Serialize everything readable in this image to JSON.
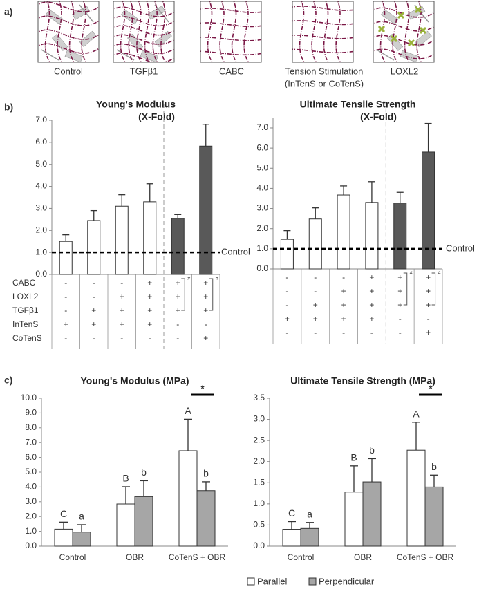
{
  "panel_labels": [
    "a)",
    "b)",
    "c)"
  ],
  "schematics": {
    "captions": [
      "Control",
      "TGFβ1",
      "CABC",
      "Tension Stimulation",
      "LOXL2"
    ],
    "subcaption": "(InTenS or CoTenS)"
  },
  "treatments": {
    "rows": [
      {
        "label": "CABC",
        "values": [
          "-",
          "-",
          "-",
          "+",
          "+",
          "+"
        ]
      },
      {
        "label": "LOXL2",
        "values": [
          "-",
          "-",
          "+",
          "+",
          "+",
          "+"
        ]
      },
      {
        "label": "TGFβ1",
        "values": [
          "-",
          "+",
          "+",
          "+",
          "+",
          "+"
        ]
      },
      {
        "label": "InTenS",
        "values": [
          "+",
          "+",
          "+",
          "+",
          "-",
          "-"
        ]
      },
      {
        "label": "CoTenS",
        "values": [
          "-",
          "-",
          "-",
          "-",
          "-",
          "+"
        ]
      }
    ],
    "bracket_mark": "#"
  },
  "chart_data": [
    {
      "type": "bar",
      "title": "Young's Modulus",
      "subtitle": "(X-Fold)",
      "values": [
        1.5,
        2.45,
        3.1,
        3.3,
        2.55,
        5.83
      ],
      "errors": [
        0.3,
        0.45,
        0.52,
        0.82,
        0.17,
        0.99
      ],
      "colors": [
        "#ffffff",
        "#ffffff",
        "#ffffff",
        "#ffffff",
        "#595959",
        "#595959"
      ],
      "ylim": [
        0,
        7
      ],
      "yticks": [
        {
          "value": 0,
          "label": "0.0"
        },
        {
          "value": 1,
          "label": "1.0"
        },
        {
          "value": 2,
          "label": "2.0"
        },
        {
          "value": 3,
          "label": "3.0"
        },
        {
          "value": 4,
          "label": "4.0"
        },
        {
          "value": 5,
          "label": "5.0"
        },
        {
          "value": 6,
          "label": "6.0"
        },
        {
          "value": 7,
          "label": "7.0"
        }
      ],
      "reference_line": {
        "value": 1,
        "label": "Control"
      }
    },
    {
      "type": "bar",
      "title": "Ultimate Tensile Strength",
      "subtitle": "(X-Fold)",
      "values": [
        1.47,
        2.48,
        3.67,
        3.3,
        3.27,
        5.8
      ],
      "errors": [
        0.43,
        0.55,
        0.45,
        1.03,
        0.53,
        1.42
      ],
      "colors": [
        "#ffffff",
        "#ffffff",
        "#ffffff",
        "#ffffff",
        "#595959",
        "#595959"
      ],
      "ylim": [
        0,
        7.5
      ],
      "yticks": [
        {
          "value": 0,
          "label": "0.0"
        },
        {
          "value": 1,
          "label": "1.0"
        },
        {
          "value": 2,
          "label": "2.0"
        },
        {
          "value": 3,
          "label": "3.0"
        },
        {
          "value": 4,
          "label": "4.0"
        },
        {
          "value": 5,
          "label": "5.0"
        },
        {
          "value": 6,
          "label": "6.0"
        },
        {
          "value": 7,
          "label": "7.0"
        }
      ],
      "reference_line": {
        "value": 1,
        "label": "Control"
      }
    },
    {
      "type": "grouped_bar",
      "title": "Young's Modulus (MPa)",
      "categories": [
        "Control",
        "OBR",
        "CoTenS + OBR"
      ],
      "series": [
        {
          "name": "Parallel",
          "color": "#ffffff",
          "values": [
            1.15,
            2.85,
            6.45
          ],
          "errors": [
            0.47,
            1.17,
            2.13
          ],
          "letters": [
            "C",
            "B",
            "A"
          ]
        },
        {
          "name": "Perpendicular",
          "color": "#a6a6a6",
          "values": [
            0.95,
            3.35,
            3.75
          ],
          "errors": [
            0.5,
            1.07,
            0.6
          ],
          "letters": [
            "a",
            "b",
            "b"
          ]
        }
      ],
      "significance_label": "*",
      "ylim": [
        0,
        10
      ],
      "yticks": [
        {
          "value": 0,
          "label": "0.0"
        },
        {
          "value": 1,
          "label": "1.0"
        },
        {
          "value": 2,
          "label": "2.0"
        },
        {
          "value": 3,
          "label": "3.0"
        },
        {
          "value": 4,
          "label": "4.0"
        },
        {
          "value": 5,
          "label": "5.0"
        },
        {
          "value": 6,
          "label": "6.0"
        },
        {
          "value": 7,
          "label": "7.0"
        },
        {
          "value": 8,
          "label": "8.0"
        },
        {
          "value": 9,
          "label": "9.0"
        },
        {
          "value": 10,
          "label": "10.0"
        }
      ]
    },
    {
      "type": "grouped_bar",
      "title": "Ultimate Tensile Strength (MPa)",
      "categories": [
        "Control",
        "OBR",
        "CoTenS + OBR"
      ],
      "series": [
        {
          "name": "Parallel",
          "color": "#ffffff",
          "values": [
            0.4,
            1.28,
            2.27
          ],
          "errors": [
            0.18,
            0.62,
            0.66
          ],
          "letters": [
            "C",
            "B",
            "A"
          ]
        },
        {
          "name": "Perpendicular",
          "color": "#a6a6a6",
          "values": [
            0.42,
            1.52,
            1.4
          ],
          "errors": [
            0.14,
            0.55,
            0.28
          ],
          "letters": [
            "a",
            "b",
            "b"
          ]
        }
      ],
      "significance_label": "*",
      "ylim": [
        0,
        3.5
      ],
      "yticks": [
        {
          "value": 0,
          "label": "0.0"
        },
        {
          "value": 0.5,
          "label": "0.5"
        },
        {
          "value": 1,
          "label": "1.0"
        },
        {
          "value": 1.5,
          "label": "1.5"
        },
        {
          "value": 2,
          "label": "2.0"
        },
        {
          "value": 2.5,
          "label": "2.5"
        },
        {
          "value": 3,
          "label": "3.0"
        },
        {
          "value": 3.5,
          "label": "3.5"
        }
      ]
    }
  ]
}
